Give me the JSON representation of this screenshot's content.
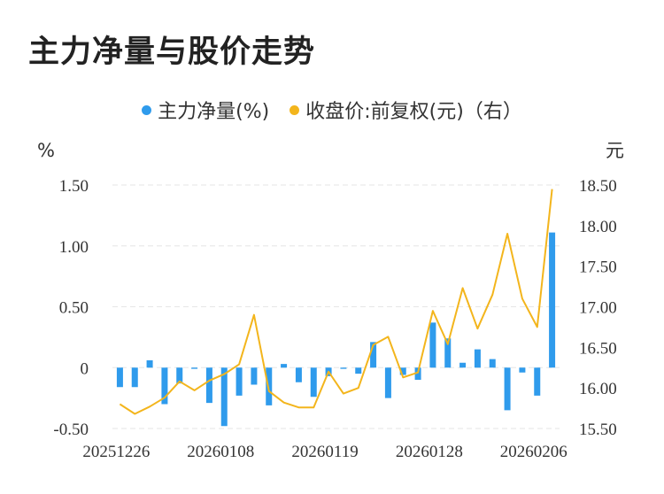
{
  "title": "主力净量与股价走势",
  "chart_data": {
    "type": "bar+line",
    "legend": [
      {
        "name": "主力净量(%)",
        "color": "#2f9bec"
      },
      {
        "name": "收盘价:前复权(元)（右）",
        "color": "#f3b51c"
      }
    ],
    "y_left": {
      "unit": "%",
      "ticks": [
        "1.50",
        "1.00",
        "0.50",
        "0",
        "-0.50"
      ],
      "range": [
        -0.5,
        1.5
      ]
    },
    "y_right": {
      "unit": "元",
      "ticks": [
        "18.50",
        "18.00",
        "17.50",
        "17.00",
        "16.50",
        "16.00",
        "15.50"
      ],
      "range": [
        15.5,
        18.5
      ]
    },
    "x_tick_labels": [
      "20251226",
      "20260108",
      "20260119",
      "20260128",
      "20260206"
    ],
    "series": [
      {
        "name": "主力净量(%)",
        "type": "bar",
        "values": [
          -0.16,
          -0.16,
          0.06,
          -0.3,
          -0.13,
          -0.01,
          -0.29,
          -0.48,
          -0.23,
          -0.14,
          -0.31,
          0.03,
          -0.12,
          -0.24,
          -0.07,
          -0.01,
          -0.05,
          0.21,
          -0.25,
          -0.06,
          -0.1,
          0.37,
          0.24,
          0.04,
          0.15,
          0.07,
          -0.35,
          -0.04,
          -0.23,
          1.11
        ]
      },
      {
        "name": "收盘价:前复权(元)（右）",
        "type": "line",
        "values": [
          15.8,
          15.68,
          15.77,
          15.88,
          16.08,
          15.97,
          16.09,
          16.17,
          16.29,
          16.9,
          15.96,
          15.82,
          15.76,
          15.76,
          16.2,
          15.93,
          16.0,
          16.53,
          16.63,
          16.13,
          16.19,
          16.95,
          16.54,
          17.23,
          16.73,
          17.15,
          17.9,
          17.1,
          16.75,
          18.45
        ]
      }
    ]
  }
}
